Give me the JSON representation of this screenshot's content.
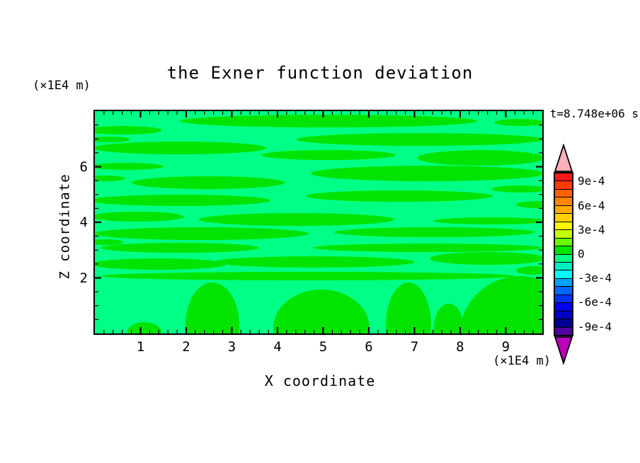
{
  "colors": {
    "background": "#ffffff",
    "frame": "#000000",
    "text": "#000000",
    "band_positive_green": "#00e400",
    "band_negative_spring_green": "#00ff85",
    "colorbar_over_pink": "#ffb0b8",
    "colorbar_under_magenta": "#bc00bc"
  },
  "chart_data": {
    "type": "heatmap",
    "subtype": "filled-contour",
    "title": "the Exner function deviation",
    "xlabel": "X coordinate",
    "ylabel": "Z coordinate",
    "x_unit": "(×1E4 m)",
    "y_unit": "(×1E4 m)",
    "time_annotation": "t=8.748e+06 s",
    "x_axis": {
      "range": [
        0,
        9.8
      ],
      "major_ticks": [
        1,
        2,
        3,
        4,
        5,
        6,
        7,
        8,
        9
      ],
      "tick_labels": [
        "1",
        "2",
        "3",
        "4",
        "5",
        "6",
        "7",
        "8",
        "9"
      ],
      "minor_step": 0.2
    },
    "y_axis": {
      "range": [
        0,
        8
      ],
      "major_ticks": [
        2,
        4,
        6
      ],
      "tick_labels": [
        "2",
        "4",
        "6"
      ],
      "minor_step": 0.5
    },
    "grid": false,
    "contour_interval": 0.0001,
    "value_bands_visible": [
      {
        "range": "0 to 1e-4",
        "color": "#00e400",
        "appearance": "bright green horizontal streaks and bottom plumes"
      },
      {
        "range": "-1e-4 to 0",
        "color": "#00ff85",
        "appearance": "spring green background"
      }
    ],
    "colorbar": {
      "orientation": "vertical",
      "position": "right",
      "over_color": "#ffb0b8",
      "under_color": "#bc00bc",
      "segment_colors_top_to_bottom": [
        "#ff1717",
        "#ff3b00",
        "#ff6000",
        "#ff8600",
        "#ffab00",
        "#ffd100",
        "#fff600",
        "#c4ff00",
        "#6aff00",
        "#00e400",
        "#00ff85",
        "#00efc1",
        "#00fdfd",
        "#00a2ff",
        "#0066ff",
        "#0031ff",
        "#0000f2",
        "#0000c4",
        "#000096",
        "#5200a0"
      ],
      "levels_top_to_bottom": [
        "1e-3",
        "9e-4",
        "8e-4",
        "7e-4",
        "6e-4",
        "5e-4",
        "4e-4",
        "3e-4",
        "2e-4",
        "1e-4",
        "0",
        "-1e-4",
        "-2e-4",
        "-3e-4",
        "-4e-4",
        "-5e-4",
        "-6e-4",
        "-7e-4",
        "-8e-4",
        "-9e-4",
        "-1e-3"
      ],
      "labels": [
        {
          "text": "9e-4",
          "boundary_index": 1
        },
        {
          "text": "6e-4",
          "boundary_index": 4
        },
        {
          "text": "3e-4",
          "boundary_index": 7
        },
        {
          "text": "0",
          "boundary_index": 10
        },
        {
          "text": "-3e-4",
          "boundary_index": 13
        },
        {
          "text": "-6e-4",
          "boundary_index": 16
        },
        {
          "text": "-9e-4",
          "boundary_index": 19
        }
      ]
    }
  }
}
